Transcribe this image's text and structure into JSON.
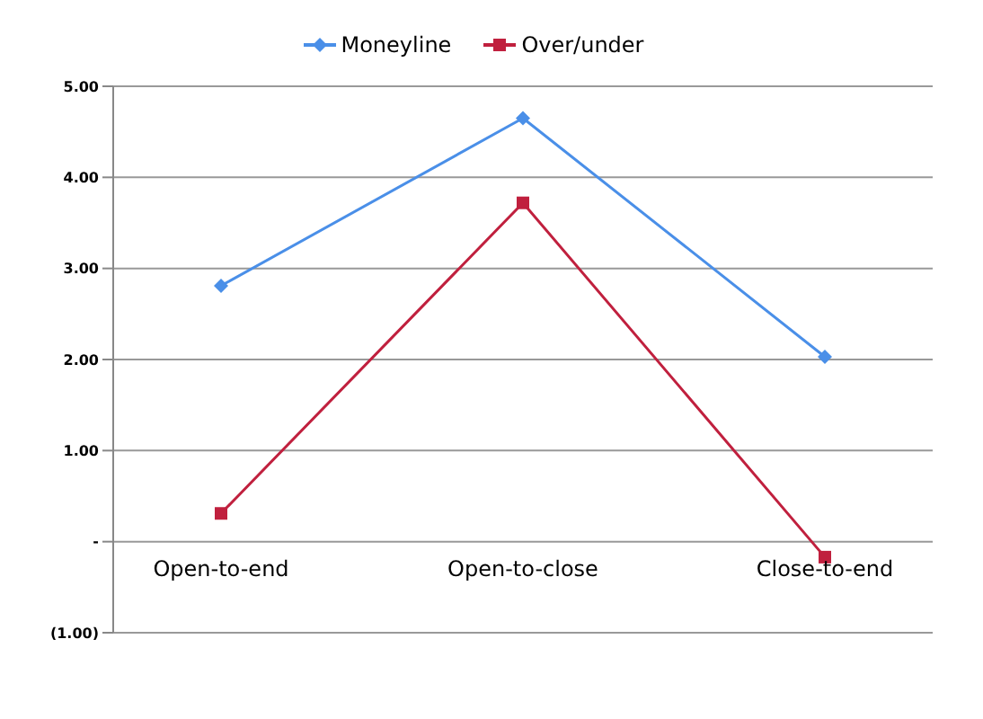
{
  "chart_data": {
    "type": "line",
    "categories": [
      "Open-to-end",
      "Open-to-close",
      "Close-to-end"
    ],
    "series": [
      {
        "name": "Moneyline",
        "color": "#4a8fe8",
        "values": [
          2.81,
          4.65,
          2.03
        ],
        "marker": "diamond"
      },
      {
        "name": "Over/under",
        "color": "#c0203e",
        "values": [
          0.31,
          3.72,
          -0.17
        ],
        "marker": "square"
      }
    ],
    "ylim": [
      -1,
      5
    ],
    "yticks": [
      {
        "value": -1,
        "label": "(1.00)"
      },
      {
        "value": 0,
        "label": "-"
      },
      {
        "value": 1,
        "label": "1.00"
      },
      {
        "value": 2,
        "label": "2.00"
      },
      {
        "value": 3,
        "label": "3.00"
      },
      {
        "value": 4,
        "label": "4.00"
      },
      {
        "value": 5,
        "label": "5.00"
      }
    ],
    "grid": "y",
    "legend": "top",
    "line_style": "solid"
  }
}
